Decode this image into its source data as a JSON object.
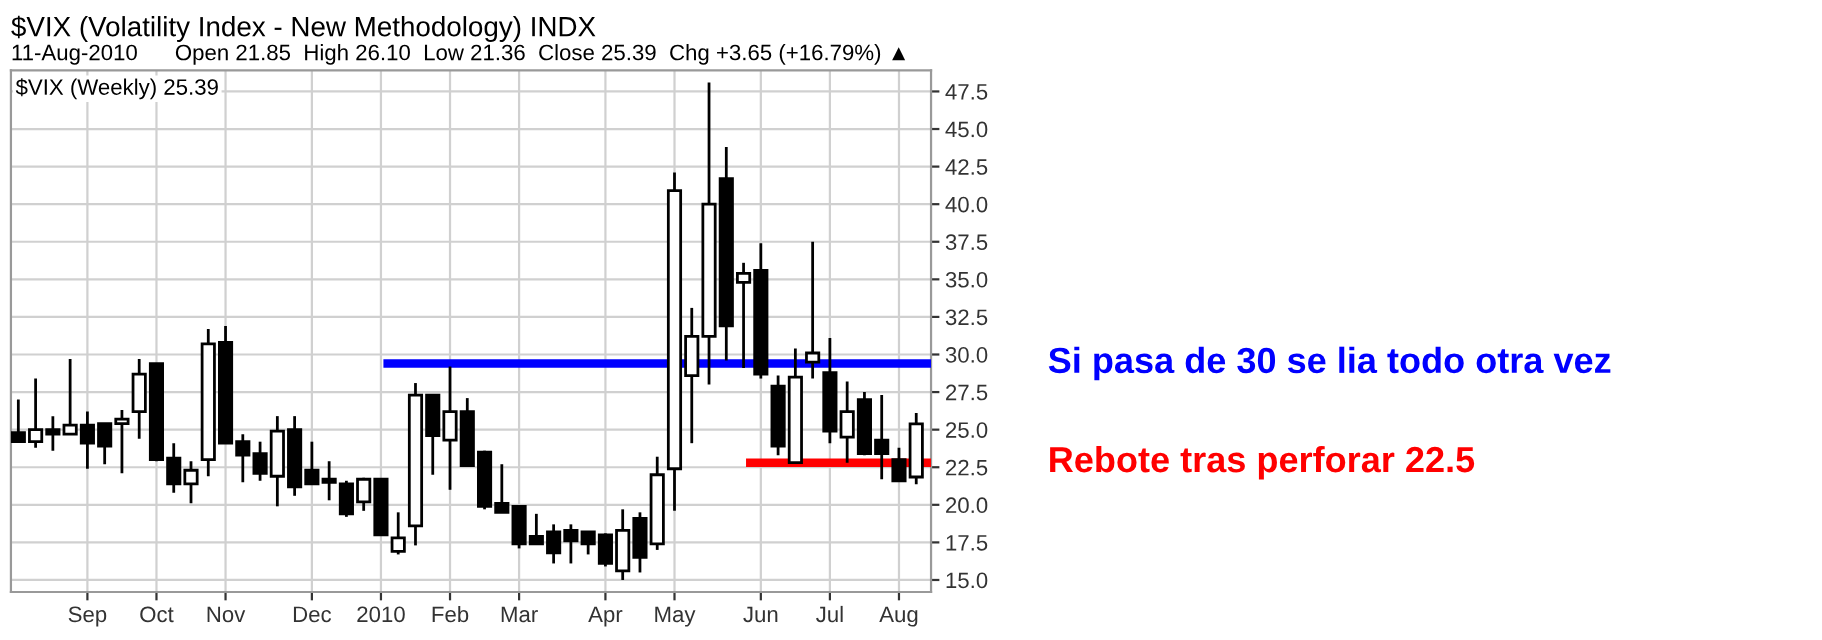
{
  "chart_data": {
    "type": "candlestick",
    "title": "$VIX (Volatility Index - New Methodology) INDX",
    "subtitle": "11-Aug-2010      Open 21.85  High 26.10  Low 21.36  Close 25.39  Chg +3.65 (+16.79%) ▲",
    "annotations": [
      "$VIX (Weekly) 25.39",
      "Si pasa de 30 se lia todo otra vez",
      "Rebote tras perforar 22.5"
    ],
    "x": [
      "2009-08-10",
      "2009-08-17",
      "2009-08-24",
      "2009-08-31",
      "2009-09-07",
      "2009-09-14",
      "2009-09-21",
      "2009-09-28",
      "2009-10-05",
      "2009-10-12",
      "2009-10-19",
      "2009-10-26",
      "2009-11-02",
      "2009-11-09",
      "2009-11-16",
      "2009-11-23",
      "2009-11-30",
      "2009-12-07",
      "2009-12-14",
      "2009-12-21",
      "2009-12-28",
      "2010-01-04",
      "2010-01-11",
      "2010-01-18",
      "2010-01-25",
      "2010-02-01",
      "2010-02-08",
      "2010-02-15",
      "2010-02-22",
      "2010-03-01",
      "2010-03-08",
      "2010-03-15",
      "2010-03-22",
      "2010-03-29",
      "2010-04-05",
      "2010-04-12",
      "2010-04-19",
      "2010-04-26",
      "2010-05-03",
      "2010-05-10",
      "2010-05-17",
      "2010-05-24",
      "2010-05-31",
      "2010-06-07",
      "2010-06-14",
      "2010-06-21",
      "2010-06-28",
      "2010-07-05",
      "2010-07-12",
      "2010-07-19",
      "2010-07-26",
      "2010-08-02",
      "2010-08-09"
    ],
    "ohlc": [
      [
        24.8,
        27.0,
        24.2,
        24.2
      ],
      [
        24.2,
        28.4,
        23.8,
        25.0
      ],
      [
        25.0,
        25.9,
        23.6,
        24.7
      ],
      [
        24.7,
        29.7,
        24.7,
        25.3
      ],
      [
        25.3,
        26.2,
        22.4,
        24.1
      ],
      [
        25.4,
        25.4,
        22.7,
        23.9
      ],
      [
        25.4,
        26.3,
        22.1,
        25.7
      ],
      [
        26.2,
        29.7,
        24.4,
        28.7
      ],
      [
        29.4,
        29.4,
        22.9,
        23.0
      ],
      [
        23.1,
        24.1,
        20.8,
        21.4
      ],
      [
        21.4,
        22.9,
        20.1,
        22.3
      ],
      [
        23.0,
        31.7,
        21.9,
        30.7
      ],
      [
        30.8,
        31.9,
        24.1,
        24.1
      ],
      [
        24.2,
        24.7,
        21.5,
        23.3
      ],
      [
        23.4,
        24.2,
        21.6,
        22.1
      ],
      [
        21.9,
        25.9,
        19.9,
        24.9
      ],
      [
        25.0,
        25.9,
        20.6,
        21.2
      ],
      [
        22.3,
        24.2,
        21.4,
        21.4
      ],
      [
        21.7,
        22.9,
        20.3,
        21.5
      ],
      [
        21.4,
        21.6,
        19.2,
        19.4
      ],
      [
        20.2,
        21.8,
        19.6,
        21.7
      ],
      [
        21.7,
        21.7,
        18.0,
        18.0
      ],
      [
        16.9,
        19.5,
        16.7,
        17.8
      ],
      [
        18.6,
        28.1,
        17.3,
        27.3
      ],
      [
        27.3,
        27.3,
        22.0,
        24.6
      ],
      [
        24.3,
        29.2,
        21.0,
        26.2
      ],
      [
        26.2,
        27.1,
        22.6,
        22.6
      ],
      [
        23.5,
        23.6,
        19.7,
        19.9
      ],
      [
        20.1,
        22.7,
        19.5,
        19.5
      ],
      [
        19.9,
        19.9,
        17.1,
        17.4
      ],
      [
        17.9,
        19.4,
        17.4,
        17.4
      ],
      [
        18.2,
        18.7,
        16.1,
        16.8
      ],
      [
        18.3,
        18.7,
        16.1,
        17.6
      ],
      [
        18.2,
        18.2,
        16.7,
        17.4
      ],
      [
        18.0,
        18.1,
        15.9,
        16.1
      ],
      [
        15.6,
        19.7,
        15.0,
        18.3
      ],
      [
        19.1,
        19.5,
        15.5,
        16.5
      ],
      [
        17.4,
        23.2,
        17.0,
        22.0
      ],
      [
        22.4,
        42.1,
        19.6,
        40.9
      ],
      [
        28.6,
        33.1,
        24.1,
        31.2
      ],
      [
        31.2,
        48.1,
        28.0,
        40.0
      ],
      [
        41.7,
        43.8,
        29.6,
        31.9
      ],
      [
        34.8,
        36.1,
        29.1,
        35.4
      ],
      [
        35.6,
        37.4,
        28.4,
        28.7
      ],
      [
        27.9,
        28.6,
        23.3,
        23.9
      ],
      [
        22.8,
        30.4,
        22.8,
        28.5
      ],
      [
        29.5,
        37.5,
        28.4,
        30.1
      ],
      [
        28.8,
        31.1,
        24.1,
        24.9
      ],
      [
        24.5,
        28.2,
        22.8,
        26.2
      ],
      [
        27.0,
        27.5,
        23.3,
        23.4
      ],
      [
        24.3,
        27.3,
        21.7,
        23.4
      ],
      [
        23.0,
        23.8,
        21.6,
        21.6
      ],
      [
        21.85,
        26.1,
        21.36,
        25.39
      ]
    ],
    "series": [
      {
        "type": "line",
        "color": "#0000ff",
        "x": [
          "2010-01-05",
          "2010-08-15"
        ],
        "values": [
          29.4,
          29.4
        ]
      },
      {
        "type": "line",
        "color": "#ff0000",
        "x": [
          "2010-06-01",
          "2010-08-15"
        ],
        "values": [
          22.8,
          22.8
        ]
      }
    ],
    "xlim": [
      "2009-08-07",
      "2010-08-15"
    ],
    "xticks": [
      {
        "value": "2009-09-07",
        "label": "Sep"
      },
      {
        "value": "2009-10-05",
        "label": "Oct"
      },
      {
        "value": "2009-11-02",
        "label": "Nov"
      },
      {
        "value": "2009-12-07",
        "label": "Dec"
      },
      {
        "value": "2010-01-04",
        "label": "2010"
      },
      {
        "value": "2010-02-01",
        "label": "Feb"
      },
      {
        "value": "2010-03-01",
        "label": "Mar"
      },
      {
        "value": "2010-04-05",
        "label": "Apr"
      },
      {
        "value": "2010-05-03",
        "label": "May"
      },
      {
        "value": "2010-06-07",
        "label": "Jun"
      },
      {
        "value": "2010-07-05",
        "label": "Jul"
      },
      {
        "value": "2010-08-02",
        "label": "Aug"
      }
    ],
    "ylim": [
      14.2,
      48.9
    ],
    "yticks": [
      {
        "value": 15,
        "label": "15.0"
      },
      {
        "value": 17.5,
        "label": "17.5"
      },
      {
        "value": 20,
        "label": "20.0"
      },
      {
        "value": 22.5,
        "label": "22.5"
      },
      {
        "value": 25,
        "label": "25.0"
      },
      {
        "value": 27.5,
        "label": "27.5"
      },
      {
        "value": 30,
        "label": "30.0"
      },
      {
        "value": 32.5,
        "label": "32.5"
      },
      {
        "value": 35,
        "label": "35.0"
      },
      {
        "value": 37.5,
        "label": "37.5"
      },
      {
        "value": 40,
        "label": "40.0"
      },
      {
        "value": 42.5,
        "label": "42.5"
      },
      {
        "value": 45,
        "label": "45.0"
      },
      {
        "value": 47.5,
        "label": "47.5"
      }
    ],
    "grid": true,
    "legend": false
  }
}
